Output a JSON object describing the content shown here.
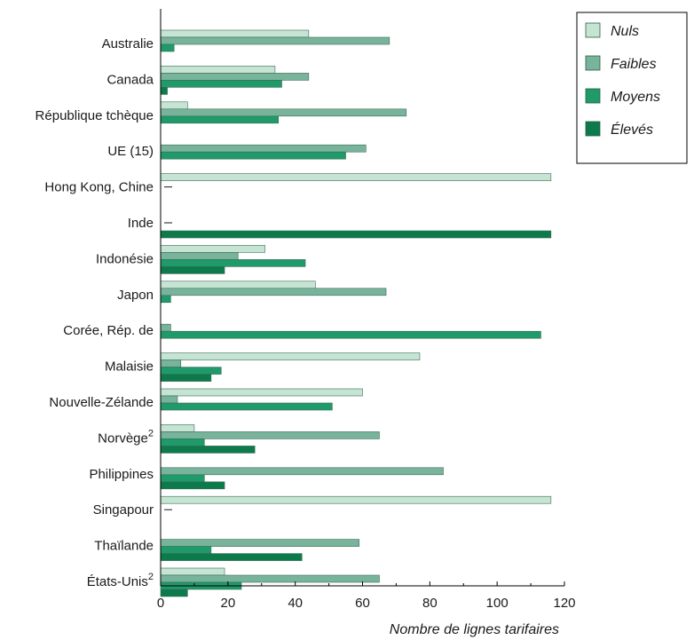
{
  "chart_data": {
    "type": "bar",
    "orientation": "horizontal",
    "categories": [
      {
        "name": "Australie",
        "sup": ""
      },
      {
        "name": "Canada",
        "sup": ""
      },
      {
        "name": "République tchèque",
        "sup": ""
      },
      {
        "name": "UE (15)",
        "sup": ""
      },
      {
        "name": "Hong Kong, Chine",
        "sup": ""
      },
      {
        "name": "Inde",
        "sup": ""
      },
      {
        "name": "Indonésie",
        "sup": ""
      },
      {
        "name": "Japon",
        "sup": ""
      },
      {
        "name": "Corée, Rép. de",
        "sup": ""
      },
      {
        "name": "Malaisie",
        "sup": ""
      },
      {
        "name": "Nouvelle-Zélande",
        "sup": ""
      },
      {
        "name": "Norvège",
        "sup": "2"
      },
      {
        "name": "Philippines",
        "sup": ""
      },
      {
        "name": "Singapour",
        "sup": ""
      },
      {
        "name": "Thaïlande",
        "sup": ""
      },
      {
        "name": "États-Unis",
        "sup": "2"
      }
    ],
    "series": [
      {
        "name": "Nuls",
        "color": "#c6e4d3",
        "values": [
          44,
          34,
          8,
          0,
          116,
          0,
          31,
          46,
          0,
          77,
          60,
          10,
          0,
          116,
          0,
          19
        ]
      },
      {
        "name": "Faibles",
        "color": "#78b49b",
        "values": [
          68,
          44,
          73,
          61,
          0,
          0,
          23,
          67,
          3,
          6,
          5,
          65,
          84,
          0,
          59,
          65
        ]
      },
      {
        "name": "Moyens",
        "color": "#1f9a6b",
        "values": [
          4,
          36,
          35,
          55,
          0,
          0,
          43,
          3,
          113,
          18,
          51,
          13,
          13,
          0,
          15,
          24
        ]
      },
      {
        "name": "Élevés",
        "color": "#0c7a4a",
        "values": [
          0,
          2,
          0,
          0,
          0,
          116,
          19,
          0,
          0,
          15,
          0,
          28,
          19,
          0,
          42,
          8
        ]
      }
    ],
    "xlim": [
      0,
      120
    ],
    "xticks": [
      0,
      20,
      40,
      60,
      80,
      100,
      120
    ],
    "xlabel": "Nombre de lignes tarifaires",
    "legend_position": "top-right",
    "grid": false
  }
}
